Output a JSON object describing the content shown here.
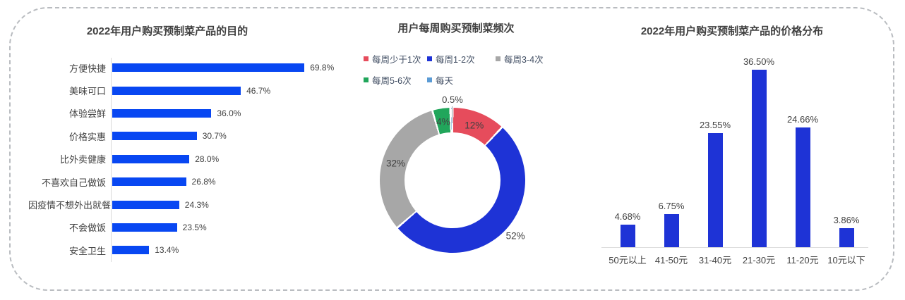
{
  "canvas": {
    "background": "#ffffff",
    "border_color": "#b9bcc0",
    "border_style": "dashed-rounded"
  },
  "chart_data": [
    {
      "type": "bar",
      "orientation": "horizontal",
      "title": "2022年用户购买预制菜产品的目的",
      "categories": [
        "方便快捷",
        "美味可口",
        "体验尝鲜",
        "价格实惠",
        "比外卖健康",
        "不喜欢自己做饭",
        "因疫情不想外出就餐",
        "不会做饭",
        "安全卫生"
      ],
      "values": [
        69.8,
        46.7,
        36.0,
        30.7,
        28.0,
        26.8,
        24.3,
        23.5,
        13.4
      ],
      "value_suffix": "%",
      "value_decimals": 1,
      "bar_color": "#0847f2",
      "axis_color": "#d9d9d9",
      "xlim": [
        0,
        75
      ],
      "grid": false
    },
    {
      "type": "pie",
      "subtype": "donut",
      "title": "用户每周购买预制菜频次",
      "slices": [
        {
          "label": "每周少于1次",
          "value": 12,
          "display": "12%",
          "color": "#e64c5c"
        },
        {
          "label": "每周1-2次",
          "value": 52,
          "display": "52%",
          "color": "#1e33d6"
        },
        {
          "label": "每周3-4次",
          "value": 32,
          "display": "32%",
          "color": "#a7a7a7"
        },
        {
          "label": "每周5-6次",
          "value": 4,
          "display": "4%",
          "color": "#21a65b"
        },
        {
          "label": "每天",
          "value": 0.5,
          "display": "0.5%",
          "color": "#5b9bd5"
        }
      ],
      "legend_position": "top",
      "start_angle_deg": 0,
      "direction": "clockwise"
    },
    {
      "type": "bar",
      "orientation": "vertical",
      "title": "2022年用户购买预制菜产品的价格分布",
      "categories": [
        "50元以上",
        "41-50元",
        "31-40元",
        "21-30元",
        "11-20元",
        "10元以下"
      ],
      "values": [
        4.68,
        6.75,
        23.55,
        36.5,
        24.66,
        3.86
      ],
      "value_suffix": "%",
      "value_decimals": 2,
      "bar_color": "#1e33d6",
      "axis_color": "#dcdcdc",
      "ylim": [
        0,
        40
      ],
      "grid": false
    }
  ]
}
